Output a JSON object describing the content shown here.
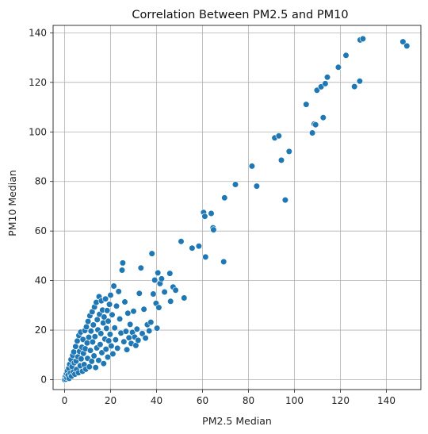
{
  "chart_data": {
    "type": "scatter",
    "title": "Correlation Between PM2.5 and PM10",
    "xlabel": "PM2.5 Median",
    "ylabel": "PM10 Median",
    "xlim": [
      -5,
      155
    ],
    "ylim": [
      -4,
      143
    ],
    "xticks": [
      0,
      20,
      40,
      60,
      80,
      100,
      120,
      140
    ],
    "yticks": [
      0,
      20,
      40,
      60,
      80,
      100,
      120,
      140
    ],
    "grid": true,
    "point_color": "#1f77b4",
    "points": [
      [
        0,
        0
      ],
      [
        0.3,
        1.2
      ],
      [
        0.5,
        0.2
      ],
      [
        0.8,
        2.4
      ],
      [
        1,
        0.8
      ],
      [
        1.2,
        3.5
      ],
      [
        1.5,
        1.8
      ],
      [
        1.8,
        4.6
      ],
      [
        2,
        0.5
      ],
      [
        2.2,
        6.2
      ],
      [
        2.5,
        2.7
      ],
      [
        2.8,
        8.1
      ],
      [
        3,
        1.4
      ],
      [
        3.2,
        5.3
      ],
      [
        3.5,
        9.8
      ],
      [
        3.8,
        3.1
      ],
      [
        4,
        11.2
      ],
      [
        4.2,
        6.8
      ],
      [
        4.5,
        2.2
      ],
      [
        4.8,
        13.4
      ],
      [
        5,
        7.5
      ],
      [
        5.2,
        4.1
      ],
      [
        5.5,
        15.6
      ],
      [
        5.8,
        9.2
      ],
      [
        6,
        2.8
      ],
      [
        6.2,
        17.8
      ],
      [
        6.5,
        11.4
      ],
      [
        6.8,
        5.6
      ],
      [
        7,
        19.2
      ],
      [
        7.2,
        8.4
      ],
      [
        7.5,
        13.1
      ],
      [
        7.8,
        3.4
      ],
      [
        8,
        16.2
      ],
      [
        8.2,
        10.6
      ],
      [
        8.5,
        6.1
      ],
      [
        8.8,
        19.8
      ],
      [
        9,
        12.5
      ],
      [
        9.2,
        4.2
      ],
      [
        9.5,
        21.3
      ],
      [
        9.8,
        14.8
      ],
      [
        10,
        8.6
      ],
      [
        10.2,
        23.5
      ],
      [
        10.5,
        17.1
      ],
      [
        10.8,
        5.2
      ],
      [
        11,
        25.8
      ],
      [
        11.2,
        11.8
      ],
      [
        11.5,
        19.6
      ],
      [
        11.8,
        7.4
      ],
      [
        12,
        27.4
      ],
      [
        12.2,
        15.2
      ],
      [
        12.5,
        22.1
      ],
      [
        12.8,
        9.6
      ],
      [
        13,
        29.3
      ],
      [
        13.2,
        17.4
      ],
      [
        13.5,
        4.9
      ],
      [
        13.8,
        31.2
      ],
      [
        14,
        12.8
      ],
      [
        14.2,
        24.2
      ],
      [
        14.5,
        20.1
      ],
      [
        14.8,
        7.8
      ],
      [
        15,
        33.5
      ],
      [
        15.2,
        26.4
      ],
      [
        15.5,
        14.2
      ],
      [
        15.8,
        18.6
      ],
      [
        16,
        31.8
      ],
      [
        16.2,
        10.9
      ],
      [
        16.5,
        28.1
      ],
      [
        16.8,
        22.9
      ],
      [
        17,
        6.5
      ],
      [
        17.2,
        25.3
      ],
      [
        17.5,
        16.4
      ],
      [
        17.8,
        32.6
      ],
      [
        18,
        12.3
      ],
      [
        18.2,
        20.7
      ],
      [
        18.5,
        27.9
      ],
      [
        18.8,
        9.1
      ],
      [
        19,
        23.6
      ],
      [
        19.2,
        15.7
      ],
      [
        19.5,
        30.4
      ],
      [
        19.8,
        18.3
      ],
      [
        20,
        34.1
      ],
      [
        20.3,
        13.6
      ],
      [
        20.7,
        26.2
      ],
      [
        21,
        10.4
      ],
      [
        21.4,
        37.8
      ],
      [
        21.8,
        20.9
      ],
      [
        22.2,
        16.1
      ],
      [
        22.6,
        29.7
      ],
      [
        23,
        12.7
      ],
      [
        23.5,
        35.6
      ],
      [
        24,
        24.5
      ],
      [
        24.5,
        18.8
      ],
      [
        25,
        44.2
      ],
      [
        25.3,
        47.1
      ],
      [
        25.8,
        15.3
      ],
      [
        26.2,
        31.4
      ],
      [
        26.7,
        19.5
      ],
      [
        27.1,
        12.1
      ],
      [
        27.5,
        26.8
      ],
      [
        28,
        16.9
      ],
      [
        28.5,
        22.3
      ],
      [
        29,
        14.6
      ],
      [
        29.5,
        19.1
      ],
      [
        30,
        27.6
      ],
      [
        30.5,
        17.2
      ],
      [
        31,
        13.8
      ],
      [
        31.5,
        20.4
      ],
      [
        32,
        15.9
      ],
      [
        32.5,
        34.8
      ],
      [
        33.2,
        45.1
      ],
      [
        33.8,
        18.6
      ],
      [
        34.5,
        28.4
      ],
      [
        35.2,
        16.8
      ],
      [
        36,
        22.2
      ],
      [
        36.8,
        19.7
      ],
      [
        37.5,
        23.2
      ],
      [
        38,
        50.9
      ],
      [
        38.6,
        34.6
      ],
      [
        39.2,
        40.2
      ],
      [
        39.8,
        30.8
      ],
      [
        40.2,
        20.8
      ],
      [
        40.6,
        43.1
      ],
      [
        41,
        29.1
      ],
      [
        41.5,
        38.8
      ],
      [
        42.2,
        40.7
      ],
      [
        43.5,
        35.4
      ],
      [
        45.8,
        42.9
      ],
      [
        46.1,
        31.6
      ],
      [
        47.2,
        37.4
      ],
      [
        48.3,
        36.1
      ],
      [
        50.7,
        55.8
      ],
      [
        52,
        33
      ],
      [
        55.5,
        53.1
      ],
      [
        58.4,
        53.9
      ],
      [
        60.5,
        67.5
      ],
      [
        61,
        65.9
      ],
      [
        61.3,
        49.5
      ],
      [
        63.8,
        67.1
      ],
      [
        64.6,
        61.3
      ],
      [
        64.8,
        60.5
      ],
      [
        69.2,
        47.6
      ],
      [
        69.6,
        73.4
      ],
      [
        74.3,
        78.8
      ],
      [
        81.5,
        86.2
      ],
      [
        83.6,
        78.1
      ],
      [
        91.4,
        97.6
      ],
      [
        93.2,
        98.4
      ],
      [
        94.3,
        88.6
      ],
      [
        96,
        72.5
      ],
      [
        97.7,
        92.1
      ],
      [
        105.1,
        111.1
      ],
      [
        107.8,
        99.6
      ],
      [
        108.6,
        103.2
      ],
      [
        109.2,
        102.9
      ],
      [
        109.8,
        116.8
      ],
      [
        111.6,
        118.2
      ],
      [
        112.5,
        105.8
      ],
      [
        113.4,
        119.5
      ],
      [
        114.3,
        122.1
      ],
      [
        119.1,
        126.1
      ],
      [
        122.4,
        130.9
      ],
      [
        126.1,
        118.3
      ],
      [
        128.4,
        120.5
      ],
      [
        128.6,
        137.1
      ],
      [
        129.8,
        137.6
      ],
      [
        147.2,
        136.4
      ],
      [
        148.9,
        134.7
      ]
    ]
  }
}
